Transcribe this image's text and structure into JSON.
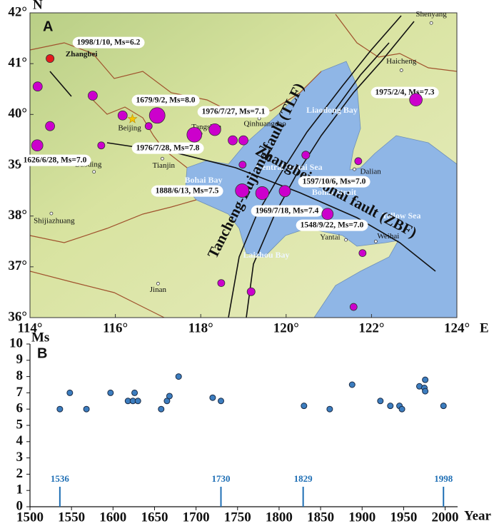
{
  "map": {
    "panel": "A",
    "north_label": "N",
    "east_label": "E",
    "lonlim": [
      114,
      124
    ],
    "latlim": [
      36,
      42
    ],
    "lonticks": [
      {
        "value": 114,
        "label": "114°"
      },
      {
        "value": 116,
        "label": "116°"
      },
      {
        "value": 118,
        "label": "118°"
      },
      {
        "value": 120,
        "label": "120°"
      },
      {
        "value": 122,
        "label": "122°"
      },
      {
        "value": 124,
        "label": "124°"
      }
    ],
    "latticks": [
      {
        "value": 36,
        "label": "36°"
      },
      {
        "value": 37,
        "label": "37°"
      },
      {
        "value": 38,
        "label": "38°"
      },
      {
        "value": 39,
        "label": "39°"
      },
      {
        "value": 40,
        "label": "40°"
      },
      {
        "value": 41,
        "label": "41°"
      },
      {
        "value": 42,
        "label": "42°"
      }
    ],
    "event_color": "#cc00cc",
    "events": [
      {
        "lon": 114.47,
        "lat": 41.1,
        "ms": 6.2,
        "color": "#e41a1c"
      },
      {
        "lon": 114.18,
        "lat": 40.55,
        "ms": 6.5
      },
      {
        "lon": 115.47,
        "lat": 40.37,
        "ms": 6.5
      },
      {
        "lon": 114.47,
        "lat": 39.77,
        "ms": 6.5
      },
      {
        "lon": 114.17,
        "lat": 39.39,
        "ms": 7.0
      },
      {
        "lon": 115.67,
        "lat": 39.39,
        "ms": 6.0
      },
      {
        "lon": 116.17,
        "lat": 39.98,
        "ms": 6.5
      },
      {
        "lon": 116.78,
        "lat": 39.77,
        "ms": 6.0
      },
      {
        "lon": 116.98,
        "lat": 39.98,
        "ms": 8.0
      },
      {
        "lon": 117.85,
        "lat": 39.6,
        "ms": 7.8
      },
      {
        "lon": 118.33,
        "lat": 39.7,
        "ms": 7.1
      },
      {
        "lon": 118.75,
        "lat": 39.49,
        "ms": 6.5
      },
      {
        "lon": 119.0,
        "lat": 39.49,
        "ms": 6.5
      },
      {
        "lon": 118.98,
        "lat": 39.01,
        "ms": 6.0
      },
      {
        "lon": 120.46,
        "lat": 39.2,
        "ms": 6.2
      },
      {
        "lon": 121.69,
        "lat": 39.08,
        "ms": 6.0
      },
      {
        "lon": 123.04,
        "lat": 40.29,
        "ms": 7.3
      },
      {
        "lon": 118.97,
        "lat": 38.5,
        "ms": 7.5
      },
      {
        "lon": 119.44,
        "lat": 38.45,
        "ms": 7.4
      },
      {
        "lon": 119.97,
        "lat": 38.49,
        "ms": 7.0
      },
      {
        "lon": 120.97,
        "lat": 38.04,
        "ms": 7.0
      },
      {
        "lon": 121.79,
        "lat": 37.27,
        "ms": 6.0
      },
      {
        "lon": 118.48,
        "lat": 36.68,
        "ms": 6.0
      },
      {
        "lon": 119.18,
        "lat": 36.51,
        "ms": 6.2
      },
      {
        "lon": 121.58,
        "lat": 36.21,
        "ms": 6.0
      }
    ],
    "event_labels": [
      "1998/1/10, Ms=6.2",
      "1679/9/2, Ms=8.0",
      "1976/7/27, Ms=7.1",
      "1975/2/4, Ms=7.3",
      "1976/7/28, Ms=7.8",
      "1626/6/28, Ms=7.0",
      "1597/10/6, Ms=7.0",
      "1888/6/13, Ms=7.5",
      "1969/7/18, Ms=7.4",
      "1548/9/22, Ms=7.0"
    ],
    "cities": [
      {
        "name": "Zhangbei",
        "lon": 114.7,
        "lat": 41.15,
        "symbol": "none"
      },
      {
        "name": "Shenyang",
        "lon": 123.4,
        "lat": 41.8,
        "symbol": "circle"
      },
      {
        "name": "Haicheng",
        "lon": 122.7,
        "lat": 40.87,
        "symbol": "circle"
      },
      {
        "name": "Beijing",
        "lon": 116.4,
        "lat": 39.91,
        "symbol": "star"
      },
      {
        "name": "Tangshan",
        "lon": 118.0,
        "lat": 39.62,
        "symbol": "circle"
      },
      {
        "name": "Qinhuangdao",
        "lon": 119.37,
        "lat": 39.92,
        "symbol": "circle"
      },
      {
        "name": "Tianjin",
        "lon": 117.1,
        "lat": 39.13,
        "symbol": "circle"
      },
      {
        "name": "Baoding",
        "lon": 115.5,
        "lat": 38.87,
        "symbol": "circle"
      },
      {
        "name": "Shijiazhuang",
        "lon": 114.5,
        "lat": 38.05,
        "symbol": "circle"
      },
      {
        "name": "Dalian",
        "lon": 121.6,
        "lat": 38.92,
        "symbol": "circle"
      },
      {
        "name": "Yantai",
        "lon": 121.4,
        "lat": 37.53,
        "symbol": "circle"
      },
      {
        "name": "Weihai",
        "lon": 122.1,
        "lat": 37.5,
        "symbol": "circle"
      },
      {
        "name": "Jinan",
        "lon": 117.0,
        "lat": 36.67,
        "symbol": "circle"
      }
    ],
    "seas": [
      "Liaodong Bay",
      "Central Bohai Sea",
      "Bohai Bay",
      "Bohai Strait",
      "Yellow Sea",
      "Laizhou Bay"
    ],
    "faults": [
      "Tancheng-Lujiang fault (TLF)",
      "Zhangbei-Bohai fault (ZBF)"
    ]
  },
  "chart_data": {
    "type": "scatter",
    "panel": "B",
    "x_label": "Year",
    "y_label": "Ms",
    "xlim": [
      1500,
      2015
    ],
    "xticks": [
      1500,
      1550,
      1600,
      1650,
      1700,
      1750,
      1800,
      1850,
      1900,
      1950,
      2000
    ],
    "ylim": [
      0,
      10
    ],
    "yticks": [
      0,
      1,
      2,
      3,
      4,
      5,
      6,
      7,
      8,
      9,
      10
    ],
    "x": [
      1536,
      1548,
      1568,
      1597,
      1618,
      1624,
      1626,
      1630,
      1658,
      1665,
      1668,
      1679,
      1720,
      1730,
      1830,
      1861,
      1888,
      1922,
      1934,
      1945,
      1948,
      1969,
      1975,
      1976,
      1976,
      1998
    ],
    "series": [
      {
        "color": "#3c7dbf",
        "values": [
          6.0,
          7.0,
          6.0,
          7.0,
          6.5,
          6.5,
          7.0,
          6.5,
          6.0,
          6.5,
          6.8,
          8.0,
          6.7,
          6.5,
          6.2,
          6.0,
          7.5,
          6.5,
          6.2,
          6.2,
          6.0,
          7.4,
          7.3,
          7.8,
          7.1,
          6.2
        ]
      }
    ],
    "markers": [
      1536,
      1730,
      1829,
      1998
    ],
    "marker_color": "#1f6fb5"
  }
}
